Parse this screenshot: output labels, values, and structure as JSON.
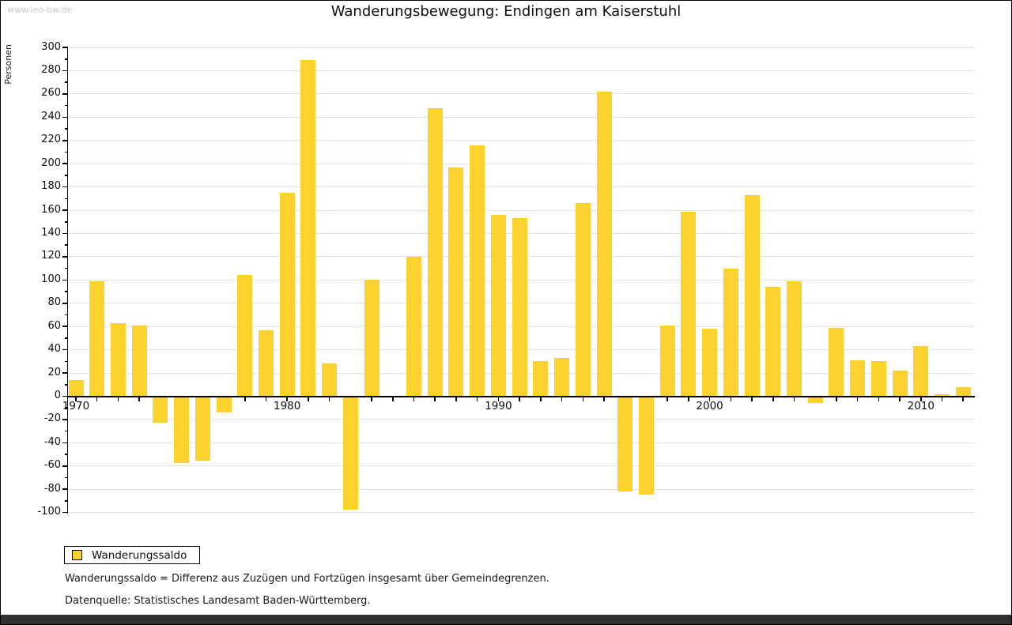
{
  "watermark": "www.leo-bw.de",
  "title": "Wanderungsbewegung: Endingen am Kaiserstuhl",
  "legend": {
    "label": "Wanderungssaldo"
  },
  "footnotes": [
    "Wanderungssaldo = Differenz aus Zuzügen und Fortzügen insgesamt über Gemeindegrenzen.",
    "Datenquelle: Statistisches Landesamt Baden-Württemberg."
  ],
  "colors": {
    "bar": "#fcd32e",
    "grid": "#e3e3e3",
    "axis": "#000000",
    "watermark": "#c9c9c9"
  },
  "chart_data": {
    "type": "bar",
    "title": "Wanderungsbewegung: Endingen am Kaiserstuhl",
    "ylabel": "Personen",
    "ylim": [
      -100,
      300
    ],
    "ytick_step": 20,
    "yminor_step": 10,
    "grid": true,
    "legend_position": "bottom-left",
    "series_name": "Wanderungssaldo",
    "xticks": [
      1970,
      1980,
      1990,
      2000,
      2010
    ],
    "years": [
      1970,
      1971,
      1972,
      1973,
      1974,
      1975,
      1976,
      1977,
      1978,
      1979,
      1980,
      1981,
      1982,
      1983,
      1984,
      1985,
      1986,
      1987,
      1988,
      1989,
      1990,
      1991,
      1992,
      1993,
      1994,
      1995,
      1996,
      1997,
      1998,
      1999,
      2000,
      2001,
      2002,
      2003,
      2004,
      2005,
      2006,
      2007,
      2008,
      2009,
      2010,
      2011,
      2012
    ],
    "values": [
      14,
      99,
      63,
      61,
      -22,
      -57,
      -55,
      -13,
      104,
      57,
      175,
      289,
      28,
      -97,
      100,
      0,
      120,
      248,
      197,
      216,
      156,
      153,
      30,
      33,
      166,
      262,
      -81,
      -84,
      61,
      159,
      58,
      110,
      173,
      94,
      99,
      -5,
      59,
      31,
      30,
      22,
      43,
      2,
      8
    ]
  }
}
